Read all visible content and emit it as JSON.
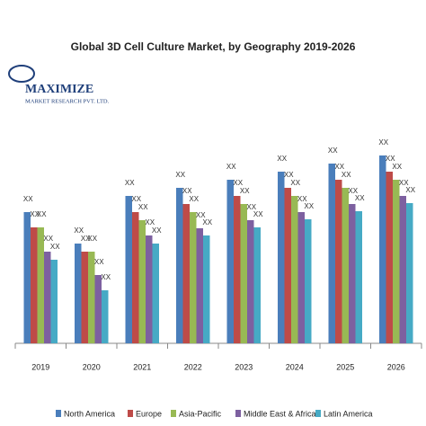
{
  "chart_data": {
    "type": "bar",
    "title": "Global 3D Cell Culture Market, by Geography 2019-2026",
    "categories": [
      "2019",
      "2020",
      "2021",
      "2022",
      "2023",
      "2024",
      "2025",
      "2026"
    ],
    "ylim": [
      0,
      240
    ],
    "legend": "bottom",
    "series": [
      {
        "name": "North America",
        "color": "#4a7ebb",
        "values": [
          146,
          111,
          164,
          173,
          182,
          191,
          200,
          209
        ],
        "value_labels": [
          "XX",
          "XX",
          "XX",
          "XX",
          "XX",
          "XX",
          "XX",
          "XX"
        ]
      },
      {
        "name": "Europe",
        "color": "#be4b48",
        "values": [
          129,
          102,
          146,
          155,
          164,
          173,
          182,
          191
        ],
        "value_labels": [
          "XX",
          "XX",
          "XX",
          "XX",
          "XX",
          "XX",
          "XX",
          "XX"
        ]
      },
      {
        "name": "Asia-Pacific",
        "color": "#98b954",
        "values": [
          129,
          102,
          137,
          146,
          155,
          164,
          173,
          182
        ],
        "value_labels": [
          "XX",
          "XX",
          "XX",
          "XX",
          "XX",
          "XX",
          "XX",
          "XX"
        ]
      },
      {
        "name": "Middle East & Africa",
        "color": "#7d60a0",
        "values": [
          102,
          76,
          120,
          128,
          137,
          146,
          155,
          164
        ],
        "value_labels": [
          "XX",
          "XX",
          "XX",
          "XX",
          "XX",
          "XX",
          "XX",
          "XX"
        ]
      },
      {
        "name": "Latin America",
        "color": "#46aac5",
        "values": [
          93,
          59,
          111,
          120,
          129,
          138,
          147,
          156
        ],
        "value_labels": [
          "XX",
          "XX",
          "XX",
          "XX",
          "XX",
          "XX",
          "XX",
          "XX"
        ]
      }
    ]
  },
  "logo": {
    "name": "MAXIMIZE",
    "subtitle": "MARKET RESEARCH PVT. LTD."
  }
}
